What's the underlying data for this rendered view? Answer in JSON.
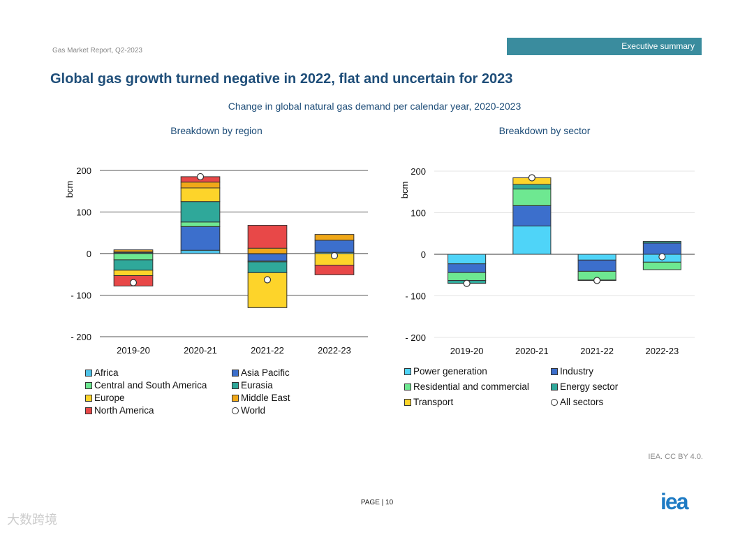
{
  "header": {
    "report": "Gas Market Report, Q2-2023",
    "section": "Executive summary"
  },
  "title": "Global gas growth turned negative in 2022, flat and uncertain for 2023",
  "subtitle": "Change in global natural gas demand per calendar year, 2020-2023",
  "footer": {
    "source": "IEA. CC BY 4.0.",
    "page": "PAGE | 10",
    "logo": "iea",
    "watermark": "大数跨境"
  },
  "chart_data": [
    {
      "type": "bar",
      "stacked": true,
      "title": "Breakdown by region",
      "ylabel": "bcm",
      "ylim": [
        -200,
        200
      ],
      "yticks": [
        {
          "v": 200,
          "l": "200"
        },
        {
          "v": 100,
          "l": "100"
        },
        {
          "v": 0,
          "l": "0"
        },
        {
          "v": -100,
          "l": "- 100"
        },
        {
          "v": -200,
          "l": "- 200"
        }
      ],
      "grid": true,
      "legend": "bottom",
      "categories": [
        "2019-20",
        "2020-21",
        "2021-22",
        "2022-23"
      ],
      "series": [
        {
          "name": "Africa",
          "color": "#4fc3e8",
          "values": [
            2,
            8,
            -1,
            3
          ]
        },
        {
          "name": "Asia Pacific",
          "color": "#3c6fcc",
          "values": [
            2,
            57,
            -17,
            29
          ]
        },
        {
          "name": "Central and South America",
          "color": "#6ee891",
          "values": [
            -15,
            11,
            -2,
            0
          ]
        },
        {
          "name": "Eurasia",
          "color": "#2fa89a",
          "values": [
            -25,
            49,
            -26,
            0
          ]
        },
        {
          "name": "Europe",
          "color": "#fdd42a",
          "values": [
            -13,
            33,
            -84,
            -28
          ]
        },
        {
          "name": "Middle East",
          "color": "#f0a818",
          "values": [
            5,
            14,
            13,
            14
          ]
        },
        {
          "name": "North America",
          "color": "#e84848",
          "values": [
            -25,
            13,
            55,
            -23
          ]
        }
      ],
      "total": {
        "name": "World",
        "values": [
          -70,
          185,
          -63,
          -5
        ]
      }
    },
    {
      "type": "bar",
      "stacked": true,
      "title": "Breakdown by sector",
      "ylabel": "bcm",
      "ylim": [
        -200,
        200
      ],
      "yticks": [
        {
          "v": 200,
          "l": "200"
        },
        {
          "v": 100,
          "l": "100"
        },
        {
          "v": 0,
          "l": "0"
        },
        {
          "v": -100,
          "l": "- 100"
        },
        {
          "v": -200,
          "l": "- 200"
        }
      ],
      "grid": true,
      "legend": "bottom",
      "categories": [
        "2019-20",
        "2020-21",
        "2021-22",
        "2022-23"
      ],
      "series": [
        {
          "name": "Power generation",
          "color": "#4fd4f8",
          "values": [
            -23,
            68,
            -14,
            -19
          ]
        },
        {
          "name": "Industry",
          "color": "#3c6fcc",
          "values": [
            -21,
            49,
            -27,
            27
          ]
        },
        {
          "name": "Residential and commercial",
          "color": "#6ee891",
          "values": [
            -19,
            40,
            -21,
            -18
          ]
        },
        {
          "name": "Energy sector",
          "color": "#2fa89a",
          "values": [
            -7,
            11,
            -1,
            4
          ]
        },
        {
          "name": "Transport",
          "color": "#fdd42a",
          "values": [
            0,
            16,
            0,
            0
          ]
        }
      ],
      "total": {
        "name": "All sectors",
        "values": [
          -70,
          184,
          -63,
          -6
        ]
      }
    }
  ]
}
